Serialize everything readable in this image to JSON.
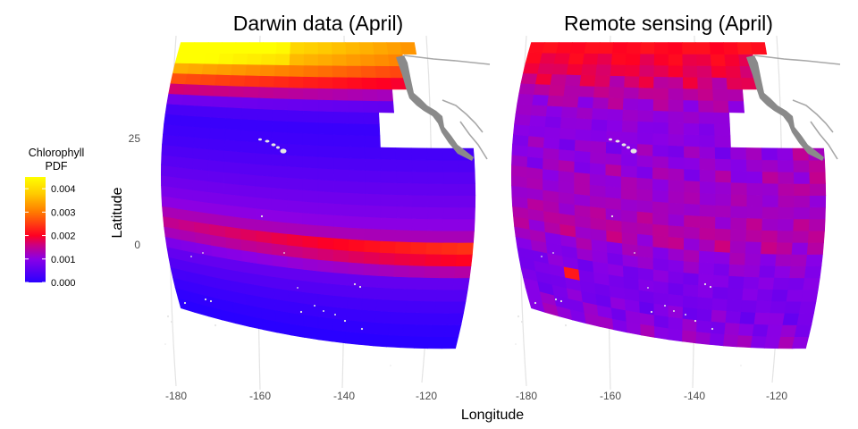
{
  "chart_data": [
    {
      "type": "heatmap",
      "title": "Darwin data (April)",
      "xlabel": "Longitude",
      "ylabel": "Latitude",
      "xlim": [
        -185,
        -115
      ],
      "ylim": [
        -25,
        45
      ],
      "x_ticks": [
        -180,
        -160,
        -140,
        -120
      ],
      "x_tick_labels": [
        "-180",
        "-160",
        "-140",
        "-120"
      ],
      "y_ticks": [
        25,
        0
      ],
      "y_tick_labels": [
        "25",
        "0"
      ],
      "grid": true,
      "value_name": "Chlorophyll PDF",
      "profile_latitudes": [
        -24,
        -20,
        -15,
        -10,
        -8,
        -5,
        -3,
        -2,
        0,
        2,
        4,
        6,
        10,
        15,
        20,
        25,
        27,
        30,
        32,
        34,
        36,
        38,
        40,
        42,
        44
      ],
      "profile_values": [
        0.0,
        0.0001,
        0.0003,
        0.0006,
        0.0009,
        0.0014,
        0.0018,
        0.0017,
        0.0013,
        0.0011,
        0.0009,
        0.0008,
        0.0006,
        0.0004,
        0.0002,
        0.0001,
        0.0002,
        0.0006,
        0.0012,
        0.0019,
        0.0026,
        0.0032,
        0.0037,
        0.0042,
        0.0043
      ],
      "notes": [
        "Highest values (above 0.004) in the north-west corner near 40-45N, 175-165W",
        "Equatorial band of ~0.002 strengthening toward the east near 5S"
      ]
    },
    {
      "type": "heatmap",
      "title": "Remote sensing (April)",
      "xlabel": "Longitude",
      "ylabel": "Latitude",
      "xlim": [
        -185,
        -115
      ],
      "ylim": [
        -25,
        45
      ],
      "x_ticks": [
        -180,
        -160,
        -140,
        -120
      ],
      "x_tick_labels": [
        "-180",
        "-160",
        "-140",
        "-120"
      ],
      "y_ticks": [
        25,
        0
      ],
      "y_tick_labels": [
        "25",
        "0"
      ],
      "grid": true,
      "value_name": "Chlorophyll PDF",
      "profile_latitudes": [
        -24,
        -20,
        -15,
        -10,
        -5,
        -3,
        0,
        3,
        6,
        10,
        15,
        20,
        25,
        30,
        34,
        38,
        42,
        44
      ],
      "profile_values": [
        0.0011,
        0.0009,
        0.0008,
        0.0009,
        0.0011,
        0.0013,
        0.0014,
        0.0013,
        0.0012,
        0.0012,
        0.0011,
        0.001,
        0.001,
        0.0012,
        0.0015,
        0.0018,
        0.002,
        0.0021
      ],
      "notes": [
        "Fairly uniform ~0.001-0.002 across the domain",
        "Values near 0.002 along the North American coast and in the far north"
      ]
    }
  ],
  "legend": {
    "title_line1": "Chlorophyll",
    "title_line2": "PDF",
    "ticks": [
      "0.004",
      "0.003",
      "0.002",
      "0.001",
      "0.000"
    ],
    "tick_values": [
      0.004,
      0.003,
      0.002,
      0.001,
      0.0
    ],
    "max_value": 0.0045,
    "colors": [
      "#2a00ff",
      "#8a00e6",
      "#cc0080",
      "#ff0022",
      "#ff7a00",
      "#ffcc00",
      "#ffff00"
    ],
    "color_stops": [
      0.0,
      0.001,
      0.0016,
      0.002,
      0.003,
      0.0038,
      0.0045
    ]
  },
  "colors": {
    "land": "#8a8a8a",
    "coastline": "#a8a8a8",
    "islands": "#e6e6e6",
    "grid": "#e3e3e3"
  }
}
